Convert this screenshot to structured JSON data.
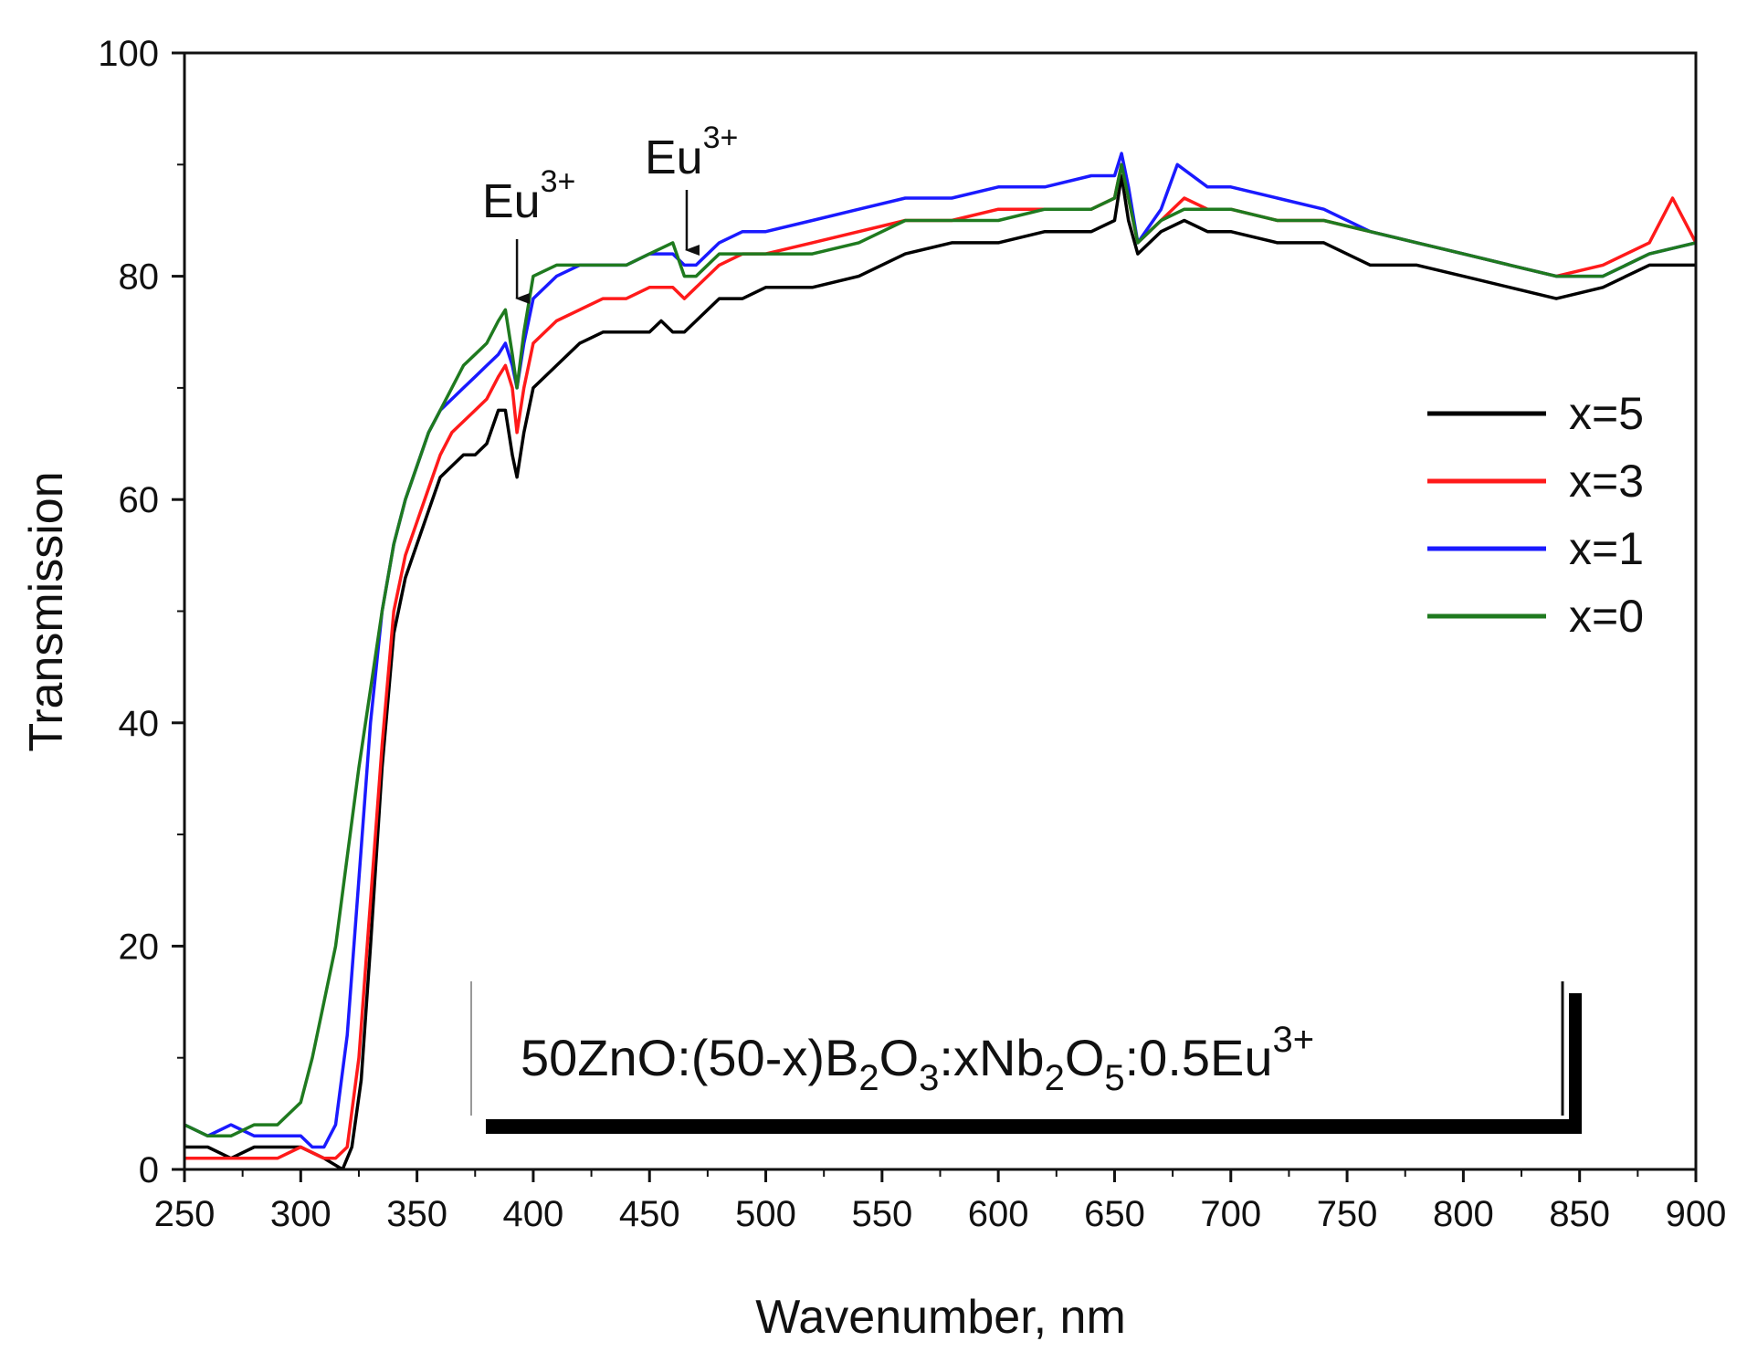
{
  "chart_data": {
    "type": "line",
    "title": "",
    "xlabel": "Wavenumber, nm",
    "ylabel": "Transmission",
    "xlim": [
      250,
      900
    ],
    "ylim": [
      0,
      100
    ],
    "x_ticks": [
      250,
      300,
      350,
      400,
      450,
      500,
      550,
      600,
      650,
      700,
      750,
      800,
      850,
      900
    ],
    "y_ticks": [
      0,
      20,
      40,
      60,
      80,
      100
    ],
    "grid": false,
    "legend_position": "right",
    "annotations": [
      {
        "base": "Eu",
        "sup": "3+",
        "x": 393,
        "y_arrow_tip": 77
      },
      {
        "base": "Eu",
        "sup": "3+",
        "x": 466,
        "y_arrow_tip": 82
      }
    ],
    "formula_box": {
      "parts": [
        {
          "t": "50ZnO:(50-x)B",
          "s": "n"
        },
        {
          "t": "2",
          "s": "sub"
        },
        {
          "t": "O",
          "s": "n"
        },
        {
          "t": "3",
          "s": "sub"
        },
        {
          "t": ":xNb",
          "s": "n"
        },
        {
          "t": "2",
          "s": "sub"
        },
        {
          "t": "O",
          "s": "n"
        },
        {
          "t": "5",
          "s": "sub"
        },
        {
          "t": ":0.5Eu",
          "s": "n"
        },
        {
          "t": "3+",
          "s": "sup"
        }
      ]
    },
    "series": [
      {
        "name": "x=5",
        "color": "#000000",
        "x": [
          250,
          260,
          270,
          280,
          290,
          300,
          310,
          318,
          322,
          326,
          330,
          335,
          340,
          345,
          350,
          355,
          360,
          365,
          370,
          375,
          380,
          385,
          388,
          391,
          393,
          396,
          400,
          410,
          420,
          430,
          440,
          450,
          455,
          460,
          465,
          470,
          480,
          490,
          500,
          520,
          540,
          560,
          580,
          600,
          620,
          640,
          650,
          653,
          656,
          660,
          670,
          680,
          690,
          700,
          720,
          740,
          760,
          780,
          800,
          820,
          840,
          860,
          880,
          900
        ],
        "y": [
          2,
          2,
          1,
          2,
          2,
          2,
          1,
          0,
          2,
          8,
          20,
          36,
          48,
          53,
          56,
          59,
          62,
          63,
          64,
          64,
          65,
          68,
          68,
          64,
          62,
          66,
          70,
          72,
          74,
          75,
          75,
          75,
          76,
          75,
          75,
          76,
          78,
          78,
          79,
          79,
          80,
          82,
          83,
          83,
          84,
          84,
          85,
          89,
          85,
          82,
          84,
          85,
          84,
          84,
          83,
          83,
          81,
          81,
          80,
          79,
          78,
          79,
          81,
          81
        ]
      },
      {
        "name": "x=3",
        "color": "#ff1a1a",
        "x": [
          250,
          260,
          270,
          280,
          290,
          300,
          310,
          315,
          320,
          325,
          330,
          335,
          340,
          345,
          350,
          355,
          360,
          365,
          370,
          375,
          380,
          385,
          388,
          391,
          393,
          396,
          400,
          410,
          420,
          430,
          440,
          450,
          455,
          460,
          465,
          470,
          480,
          490,
          500,
          520,
          540,
          560,
          580,
          600,
          620,
          640,
          650,
          653,
          656,
          660,
          670,
          680,
          690,
          700,
          720,
          740,
          760,
          780,
          800,
          820,
          840,
          860,
          880,
          890,
          900
        ],
        "y": [
          1,
          1,
          1,
          1,
          1,
          2,
          1,
          1,
          2,
          10,
          24,
          38,
          50,
          55,
          58,
          61,
          64,
          66,
          67,
          68,
          69,
          71,
          72,
          70,
          66,
          70,
          74,
          76,
          77,
          78,
          78,
          79,
          79,
          79,
          78,
          79,
          81,
          82,
          82,
          83,
          84,
          85,
          85,
          86,
          86,
          86,
          87,
          90,
          87,
          83,
          85,
          87,
          86,
          86,
          85,
          85,
          84,
          83,
          82,
          81,
          80,
          81,
          83,
          87,
          83
        ]
      },
      {
        "name": "x=1",
        "color": "#1a1aff",
        "x": [
          250,
          260,
          270,
          280,
          290,
          300,
          305,
          310,
          315,
          320,
          325,
          330,
          335,
          340,
          345,
          350,
          355,
          360,
          365,
          370,
          375,
          380,
          385,
          388,
          391,
          393,
          396,
          400,
          410,
          420,
          430,
          440,
          450,
          460,
          465,
          470,
          480,
          490,
          500,
          520,
          540,
          560,
          580,
          600,
          620,
          640,
          650,
          653,
          656,
          660,
          670,
          677,
          690,
          700,
          720,
          740,
          760,
          780,
          800,
          820,
          840,
          860,
          880,
          900
        ],
        "y": [
          4,
          3,
          4,
          3,
          3,
          3,
          2,
          2,
          4,
          12,
          26,
          40,
          50,
          56,
          60,
          63,
          66,
          68,
          69,
          70,
          71,
          72,
          73,
          74,
          72,
          70,
          74,
          78,
          80,
          81,
          81,
          81,
          82,
          82,
          81,
          81,
          83,
          84,
          84,
          85,
          86,
          87,
          87,
          88,
          88,
          89,
          89,
          91,
          88,
          83,
          86,
          90,
          88,
          88,
          87,
          86,
          84,
          83,
          82,
          81,
          80,
          80,
          82,
          83
        ]
      },
      {
        "name": "x=0",
        "color": "#1f7a1f",
        "x": [
          250,
          260,
          270,
          280,
          290,
          300,
          305,
          310,
          315,
          320,
          325,
          330,
          335,
          340,
          345,
          350,
          355,
          360,
          365,
          370,
          375,
          380,
          385,
          388,
          391,
          393,
          396,
          400,
          410,
          420,
          430,
          440,
          450,
          460,
          465,
          470,
          480,
          490,
          500,
          520,
          540,
          560,
          580,
          600,
          620,
          640,
          650,
          653,
          656,
          660,
          670,
          680,
          690,
          700,
          720,
          740,
          760,
          780,
          800,
          820,
          840,
          860,
          880,
          900
        ],
        "y": [
          4,
          3,
          3,
          4,
          4,
          6,
          10,
          15,
          20,
          28,
          36,
          43,
          50,
          56,
          60,
          63,
          66,
          68,
          70,
          72,
          73,
          74,
          76,
          77,
          73,
          70,
          75,
          80,
          81,
          81,
          81,
          81,
          82,
          83,
          80,
          80,
          82,
          82,
          82,
          82,
          83,
          85,
          85,
          85,
          86,
          86,
          87,
          90,
          87,
          83,
          85,
          86,
          86,
          86,
          85,
          85,
          84,
          83,
          82,
          81,
          80,
          80,
          82,
          83
        ]
      }
    ]
  }
}
